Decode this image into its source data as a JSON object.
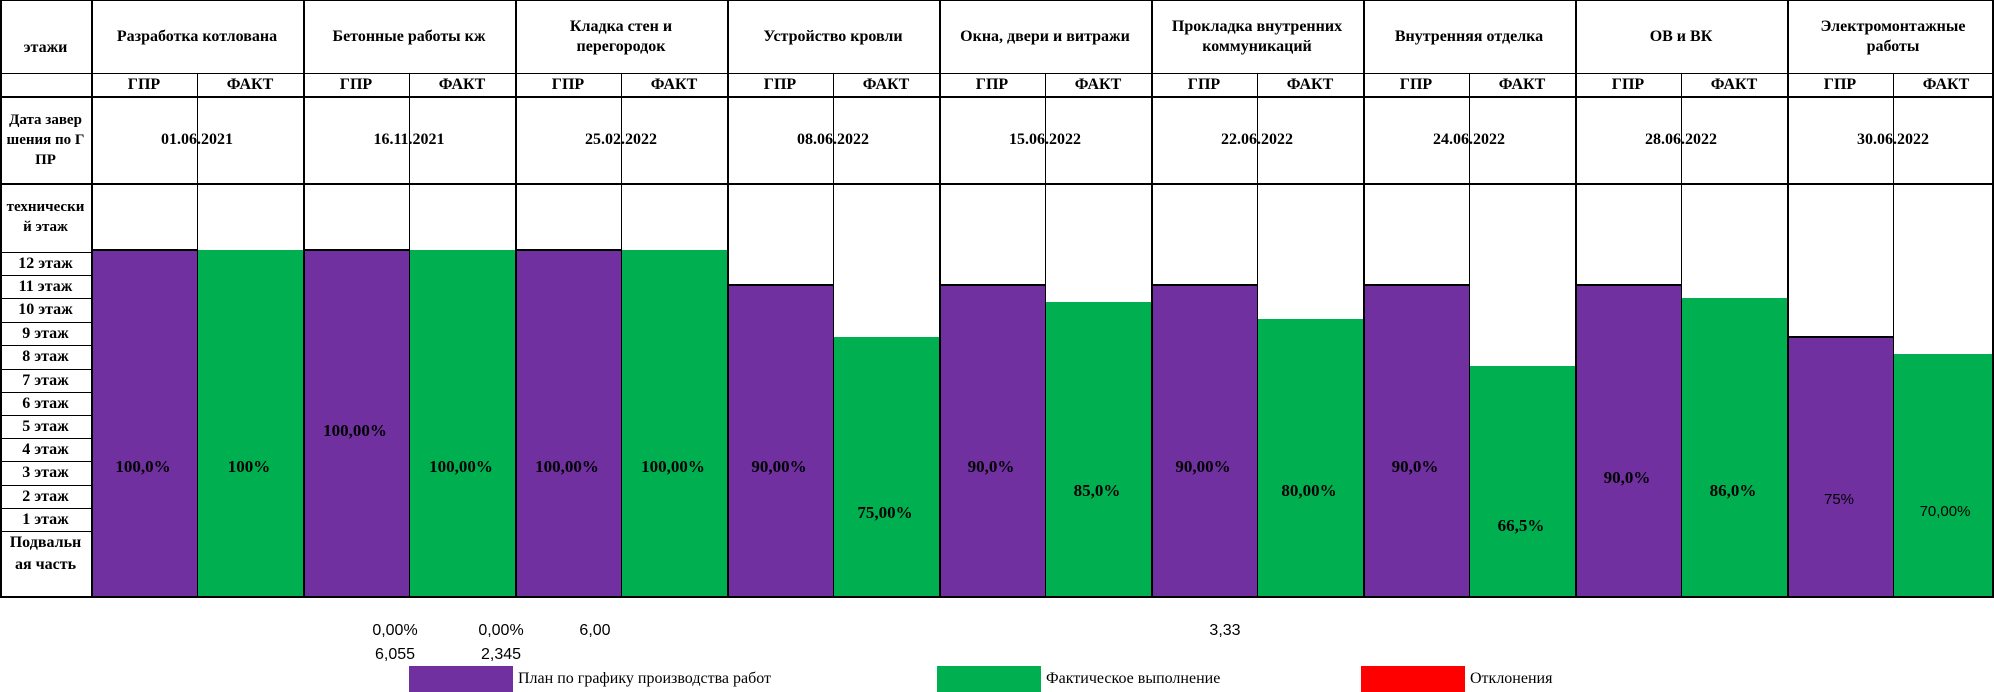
{
  "chart_data": {
    "type": "bar",
    "row_header": "этажи",
    "plan_label": "ГПР",
    "fact_label": "ФАКТ",
    "date_row_label": "Дата завершения по ГПР",
    "tech_floor_label": "технический этаж",
    "floors": [
      "12 этаж",
      "11 этаж",
      "10 этаж",
      "9 этаж",
      "8 этаж",
      "7 этаж",
      "6 этаж",
      "5 этаж",
      "4 этаж",
      "3 этаж",
      "2 этаж",
      "1 этаж",
      "Подвальная часть"
    ],
    "stages": [
      {
        "title": "Разработка котлована",
        "date": "01.06.2021",
        "plan": 100,
        "fact": 100,
        "plan_label": "100,0%",
        "fact_label": "100%"
      },
      {
        "title": "Бетонные работы кж",
        "date": "16.11.2021",
        "plan": 100,
        "fact": 100,
        "plan_label": "100,00%",
        "fact_label": "100,00%"
      },
      {
        "title": "Кладка стен и перегородок",
        "date": "25.02.2022",
        "plan": 100,
        "fact": 100,
        "plan_label": "100,00%",
        "fact_label": "100,00%"
      },
      {
        "title": "Устройство кровли",
        "date": "08.06.2022",
        "plan": 90,
        "fact": 75,
        "plan_label": "90,00%",
        "fact_label": "75,00%"
      },
      {
        "title": "Окна, двери и витражи",
        "date": "15.06.2022",
        "plan": 90,
        "fact": 85,
        "plan_label": "90,0%",
        "fact_label": "85,0%"
      },
      {
        "title": "Прокладка внутренних коммуникаций",
        "date": "22.06.2022",
        "plan": 90,
        "fact": 80,
        "plan_label": "90,00%",
        "fact_label": "80,00%"
      },
      {
        "title": "Внутренняя отделка",
        "date": "24.06.2022",
        "plan": 90,
        "fact": 66.5,
        "plan_label": "90,0%",
        "fact_label": "66,5%"
      },
      {
        "title": "ОВ и ВК",
        "date": "28.06.2022",
        "plan": 90,
        "fact": 86,
        "plan_label": "90,0%",
        "fact_label": "86,0%"
      },
      {
        "title": "Электромонтажные работы",
        "date": "30.06.2022",
        "plan": 75,
        "fact": 70,
        "plan_label": "75%",
        "fact_label": "70,00%"
      }
    ],
    "colors": {
      "plan": "#7030A0",
      "fact": "#00B050",
      "deviation": "#FF0000"
    },
    "legend": [
      {
        "label": "План по графику производства работ",
        "color": "#7030A0"
      },
      {
        "label": "Фактическое выполнение",
        "color": "#00B050"
      },
      {
        "label": "Отклонения",
        "color": "#FF0000"
      }
    ]
  },
  "notes": [
    "0,00%",
    "0,00%",
    "6,00",
    "3,33",
    "6,055",
    "2,345"
  ]
}
